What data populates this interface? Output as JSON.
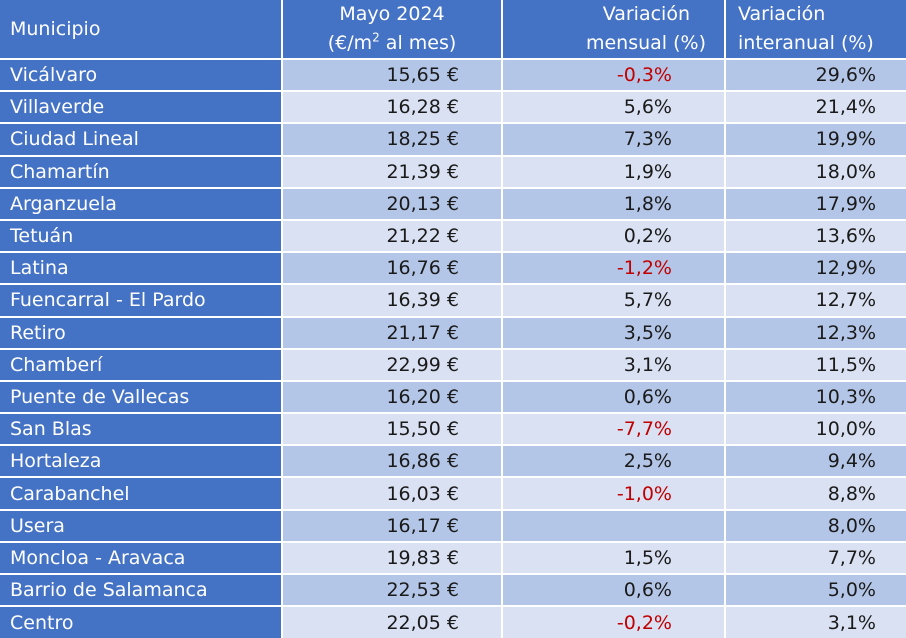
{
  "header": {
    "municipio": "Municipio",
    "price_line1": "Mayo 2024",
    "price_unit_pre": "(€/m",
    "price_unit_sup": "2",
    "price_unit_post": " al mes)",
    "mensual_line1": "Variación",
    "mensual_line2": "mensual (%)",
    "interanual_line1": "Variación",
    "interanual_line2": "interanual (%)"
  },
  "rows": [
    {
      "name": "Vicálvaro",
      "price": "15,65 €",
      "monthly": "-0,3%",
      "annual": "29,6%",
      "negative": true
    },
    {
      "name": "Villaverde",
      "price": "16,28 €",
      "monthly": "5,6%",
      "annual": "21,4%",
      "negative": false
    },
    {
      "name": "Ciudad Lineal",
      "price": "18,25 €",
      "monthly": "7,3%",
      "annual": "19,9%",
      "negative": false
    },
    {
      "name": "Chamartín",
      "price": "21,39 €",
      "monthly": "1,9%",
      "annual": "18,0%",
      "negative": false
    },
    {
      "name": "Arganzuela",
      "price": "20,13 €",
      "monthly": "1,8%",
      "annual": "17,9%",
      "negative": false
    },
    {
      "name": "Tetuán",
      "price": "21,22 €",
      "monthly": "0,2%",
      "annual": "13,6%",
      "negative": false
    },
    {
      "name": "Latina",
      "price": "16,76 €",
      "monthly": "-1,2%",
      "annual": "12,9%",
      "negative": true
    },
    {
      "name": "Fuencarral - El Pardo",
      "price": "16,39 €",
      "monthly": "5,7%",
      "annual": "12,7%",
      "negative": false
    },
    {
      "name": "Retiro",
      "price": "21,17 €",
      "monthly": "3,5%",
      "annual": "12,3%",
      "negative": false
    },
    {
      "name": "Chamberí",
      "price": "22,99 €",
      "monthly": "3,1%",
      "annual": "11,5%",
      "negative": false
    },
    {
      "name": "Puente de Vallecas",
      "price": "16,20 €",
      "monthly": "0,6%",
      "annual": "10,3%",
      "negative": false
    },
    {
      "name": "San Blas",
      "price": "15,50 €",
      "monthly": "-7,7%",
      "annual": "10,0%",
      "negative": true
    },
    {
      "name": "Hortaleza",
      "price": "16,86 €",
      "monthly": "2,5%",
      "annual": "9,4%",
      "negative": false
    },
    {
      "name": "Carabanchel",
      "price": "16,03 €",
      "monthly": "-1,0%",
      "annual": "8,8%",
      "negative": true
    },
    {
      "name": "Usera",
      "price": "16,17 €",
      "monthly": "",
      "annual": "8,0%",
      "negative": false
    },
    {
      "name": "Moncloa - Aravaca",
      "price": "19,83 €",
      "monthly": "1,5%",
      "annual": "7,7%",
      "negative": false
    },
    {
      "name": "Barrio de Salamanca",
      "price": "22,53 €",
      "monthly": "0,6%",
      "annual": "5,0%",
      "negative": false
    },
    {
      "name": "Centro",
      "price": "22,05 €",
      "monthly": "-0,2%",
      "annual": "3,1%",
      "negative": true
    }
  ],
  "colors": {
    "header_bg": "#4472c4",
    "row_dark": "#b4c6e7",
    "row_light": "#d9e1f2",
    "negative_text": "#c00000"
  }
}
